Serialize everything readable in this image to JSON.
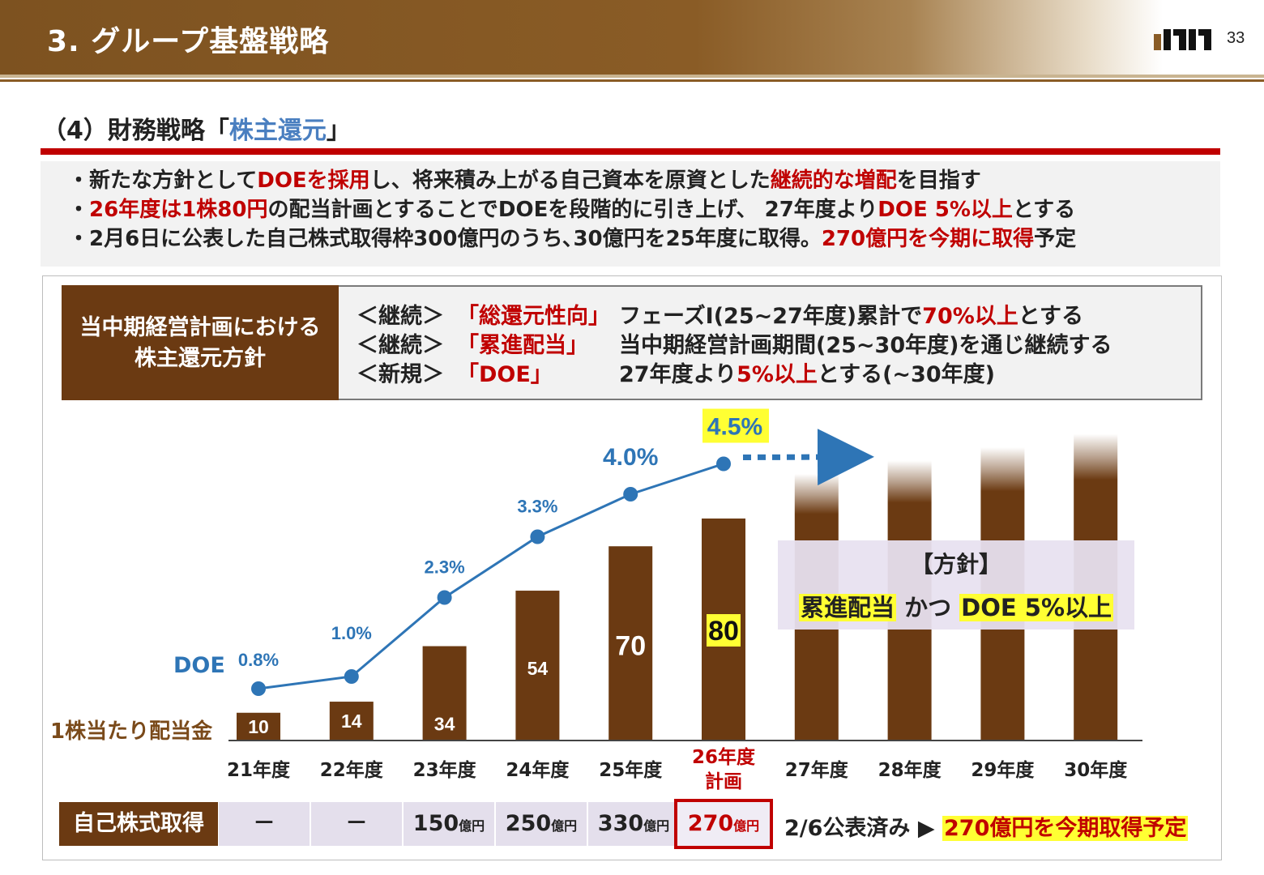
{
  "header": {
    "title": "3. グループ基盤戦略",
    "page_number": "33",
    "logo": "mm-logo"
  },
  "section": {
    "title_prefix": "（4）財務戦略「",
    "title_accent": "株主還元",
    "title_suffix": "」"
  },
  "bullets": [
    [
      {
        "t": "・新たな方針として",
        "red": false
      },
      {
        "t": "DOEを採用",
        "red": true
      },
      {
        "t": "し、将来積み上がる自己資本を原資とした",
        "red": false
      },
      {
        "t": "継続的な増配",
        "red": true
      },
      {
        "t": "を目指す",
        "red": false
      }
    ],
    [
      {
        "t": "・",
        "red": false
      },
      {
        "t": "26年度は1株80円",
        "red": true
      },
      {
        "t": "の配当計画とすることでDOEを段階的に引き上げ、 27年度より",
        "red": false
      },
      {
        "t": "DOE 5%以上",
        "red": true
      },
      {
        "t": "とする",
        "red": false
      }
    ],
    [
      {
        "t": "・2月6日に公表した自己株式取得枠300億円のうち､30億円を25年度に取得。",
        "red": false
      },
      {
        "t": "270億円を今期に取得",
        "red": true
      },
      {
        "t": "予定",
        "red": false
      }
    ]
  ],
  "policy": {
    "label_line1": "当中期経営計画における",
    "label_line2": "株主還元方針",
    "rows": [
      {
        "tag": "＜継続＞",
        "key": "「総還元性向」",
        "text_a": "フェーズⅠ(25~27年度)累計で",
        "text_red": "70%以上",
        "text_b": "とする"
      },
      {
        "tag": "＜継続＞",
        "key": "「累進配当」",
        "text_a": "当中期経営計画期間(25~30年度)を通じ継続する",
        "text_red": "",
        "text_b": ""
      },
      {
        "tag": "＜新規＞",
        "key": "「DOE」",
        "text_a": "27年度より",
        "text_red": "5%以上",
        "text_b": "とする(~30年度)"
      }
    ]
  },
  "chart_data": {
    "type": "bar",
    "categories": [
      "21年度",
      "22年度",
      "23年度",
      "24年度",
      "25年度",
      "26年度\n計画",
      "27年度",
      "28年度",
      "29年度",
      "30年度"
    ],
    "series": [
      {
        "name": "1株当たり配当金",
        "values": [
          10,
          14,
          34,
          54,
          70,
          80,
          null,
          null,
          null,
          null
        ]
      },
      {
        "name": "DOE",
        "values": [
          0.8,
          1.0,
          2.3,
          3.3,
          4.0,
          4.5,
          null,
          null,
          null,
          null
        ]
      }
    ],
    "doe_labels": [
      "0.8%",
      "1.0%",
      "2.3%",
      "3.3%",
      "4.0%",
      "4.5%"
    ],
    "future_bars_relative": [
      0.93,
      0.95,
      0.97,
      0.99
    ],
    "highlight_category": "26年度\n計画",
    "colors": {
      "bar": "#6b3a12",
      "doe_line": "#2e75b6",
      "highlight": "#ffff33",
      "accent_red": "#c00000"
    }
  },
  "labels": {
    "doe": "DOE",
    "dividend": "1株当たり配当金"
  },
  "policy_box": {
    "title": "【方針】",
    "part1": "累進配当",
    "mid": " かつ ",
    "part2": "DOE 5%以上"
  },
  "buyback": {
    "label": "自己株式取得",
    "cells": [
      {
        "value": "－",
        "unit": ""
      },
      {
        "value": "－",
        "unit": ""
      },
      {
        "value": "150",
        "unit": "億円"
      },
      {
        "value": "250",
        "unit": "億円"
      },
      {
        "value": "330",
        "unit": "億円"
      },
      {
        "value": "270",
        "unit": "億円"
      }
    ],
    "note": "2/6公表済み ▶ ",
    "note_highlight": "270億円を今期取得予定"
  }
}
